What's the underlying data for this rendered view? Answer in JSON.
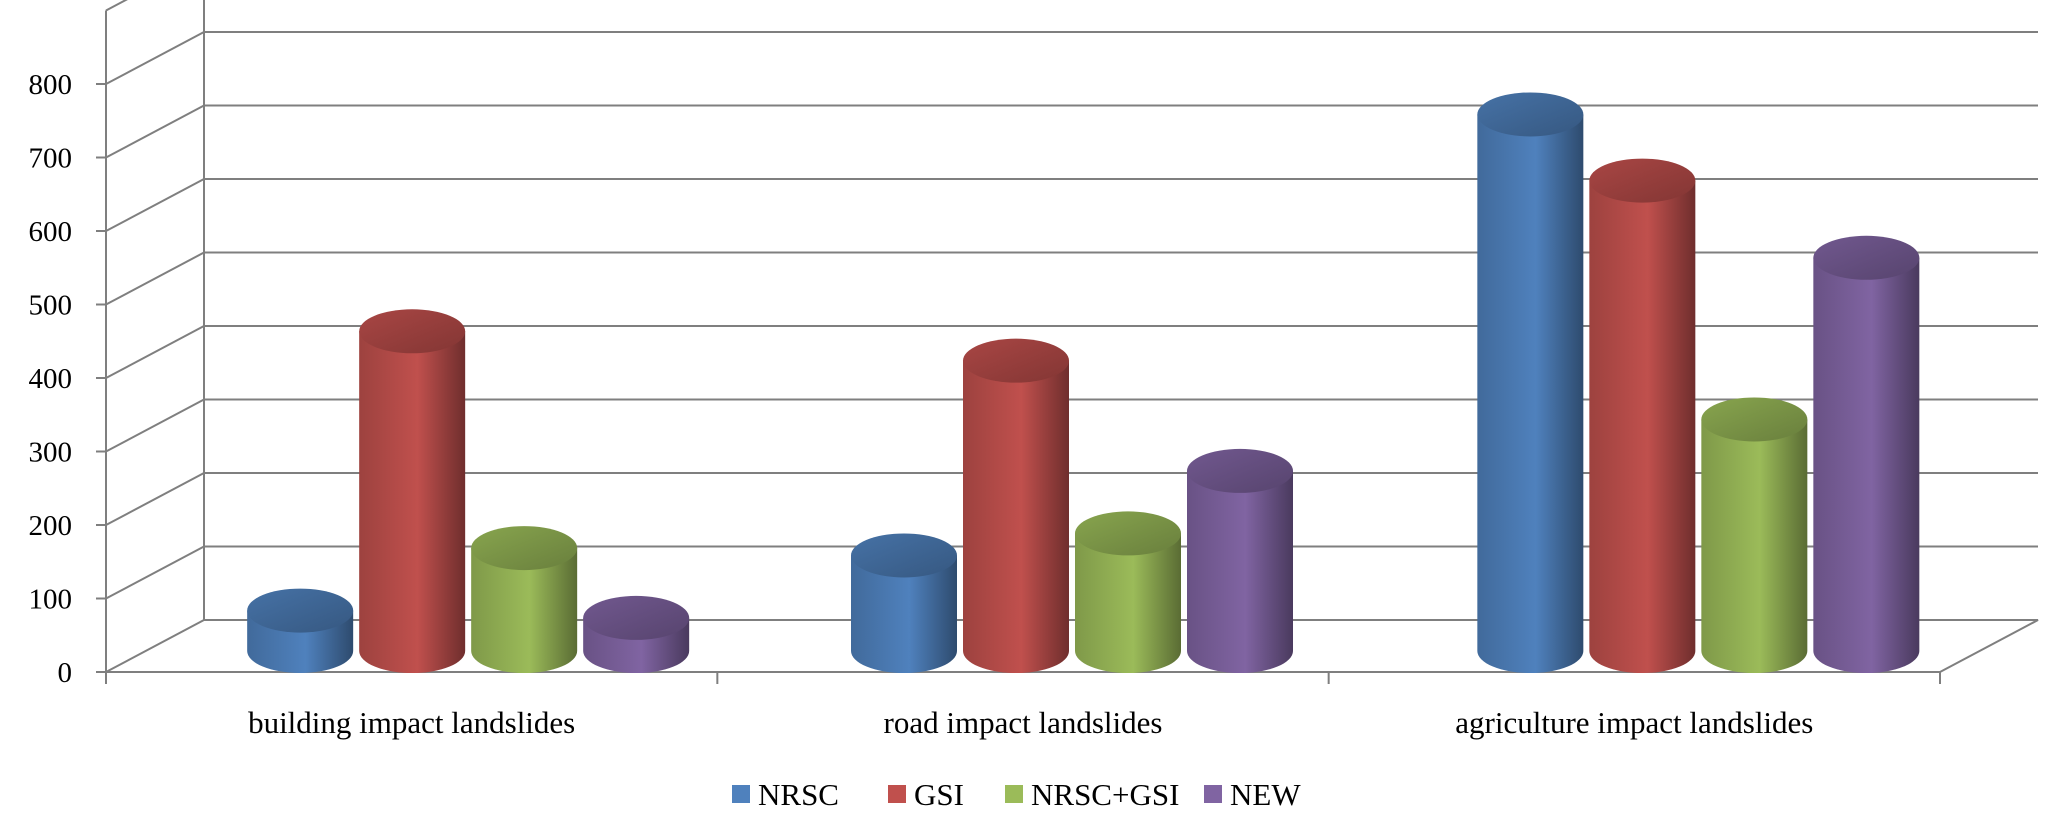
{
  "chart_data": {
    "type": "bar",
    "style": "3d-cylinder",
    "categories": [
      "building impact landslides",
      "road impact landslides",
      "agriculture impact landslides"
    ],
    "series": [
      {
        "name": "NRSC",
        "color": "#4f81bd",
        "values": [
          55,
          130,
          730
        ]
      },
      {
        "name": "GSI",
        "color": "#c0504d",
        "values": [
          435,
          395,
          640
        ]
      },
      {
        "name": "NRSC+GSI",
        "color": "#9bbb59",
        "values": [
          140,
          160,
          315
        ]
      },
      {
        "name": "NEW",
        "color": "#8064a2",
        "values": [
          45,
          245,
          535
        ]
      }
    ],
    "y_ticks": [
      "0",
      "100",
      "200",
      "300",
      "400",
      "500",
      "600",
      "700",
      "800"
    ],
    "ylim": [
      0,
      900
    ],
    "grid": true,
    "legend_position": "bottom-center"
  }
}
